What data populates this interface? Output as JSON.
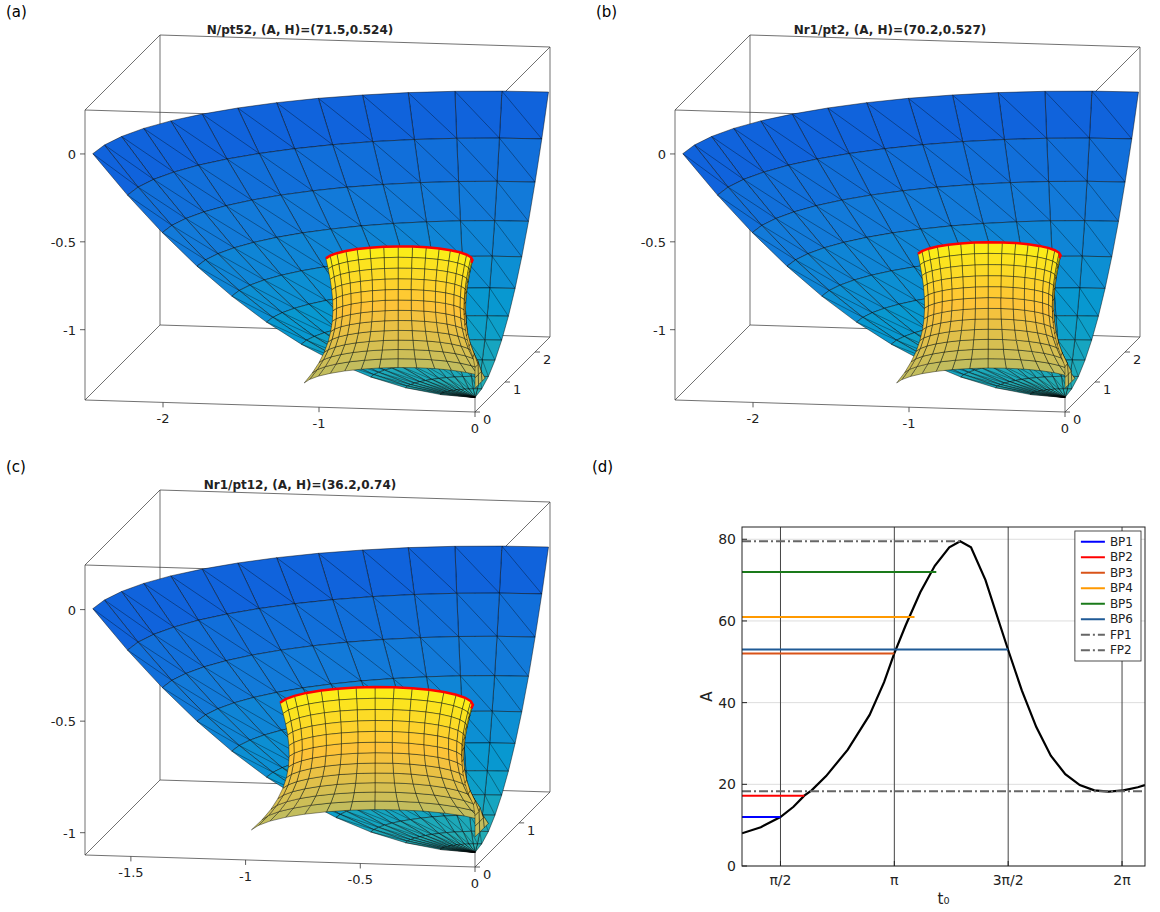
{
  "panels": [
    {
      "letter": "(a)",
      "title": "N/pt52, (A, H)=(71.5,0.524)",
      "xlim": [
        -2.5,
        0
      ],
      "ylim": [
        0,
        2.5
      ],
      "zlim": [
        -1.4,
        0.25
      ],
      "xticks": [
        -2,
        -1,
        0
      ],
      "yticks": [
        0,
        1,
        2
      ],
      "zticks": [
        -1,
        -0.5,
        0
      ]
    },
    {
      "letter": "(b)",
      "title": "Nr1/pt2, (A, H)=(70.2,0.527)",
      "xlim": [
        -2.5,
        0
      ],
      "ylim": [
        0,
        2.5
      ],
      "zlim": [
        -1.4,
        0.25
      ],
      "xticks": [
        -2,
        -1,
        0
      ],
      "yticks": [
        0,
        1,
        2
      ],
      "zticks": [
        -1,
        -0.5,
        0
      ]
    },
    {
      "letter": "(c)",
      "title": "Nr1/pt12, (A, H)=(36.2,0.74)",
      "xlim": [
        -1.7,
        0
      ],
      "ylim": [
        0,
        1.7
      ],
      "zlim": [
        -1.1,
        0.2
      ],
      "xticks": [
        -1.5,
        -1,
        -0.5,
        0
      ],
      "yticks": [
        0,
        1
      ],
      "zticks": [
        -1,
        -0.5,
        0
      ]
    }
  ],
  "chart_data": {
    "letter": "(d)",
    "type": "line",
    "x_label": "t₀",
    "y_label": "A",
    "xlim": [
      1.04,
      6.6
    ],
    "ylim": [
      0,
      83
    ],
    "xticks": [
      {
        "value": 1.5708,
        "label": "π/2"
      },
      {
        "value": 3.1416,
        "label": "π"
      },
      {
        "value": 4.7124,
        "label": "3π/2"
      },
      {
        "value": 6.2832,
        "label": "2π"
      }
    ],
    "yticks": [
      0,
      20,
      40,
      60,
      80
    ],
    "grid": true,
    "legend": "northeast",
    "series": [
      {
        "name": null,
        "color": "#000000",
        "line_style": "solid",
        "x": [
          1.04,
          1.3,
          1.57,
          1.75,
          1.9,
          2.0,
          2.2,
          2.5,
          2.8,
          3.0,
          3.14,
          3.3,
          3.5,
          3.7,
          3.9,
          4.05,
          4.2,
          4.4,
          4.6,
          4.71,
          4.9,
          5.1,
          5.3,
          5.5,
          5.7,
          5.9,
          6.1,
          6.3,
          6.5,
          6.6
        ],
        "values": [
          8,
          9.5,
          12,
          14.5,
          17.2,
          18.5,
          22,
          28.5,
          37,
          45,
          52,
          59,
          67,
          73.5,
          78,
          79.5,
          78,
          70,
          59,
          53,
          43,
          34,
          27,
          22.5,
          19.8,
          18.5,
          18.2,
          18.5,
          19.3,
          19.8
        ]
      },
      {
        "name": "BP1",
        "color": "#0000ff",
        "line_style": "solid",
        "x": [
          1.04,
          1.57
        ],
        "values": [
          12,
          12
        ]
      },
      {
        "name": "BP2",
        "color": "#ff0000",
        "line_style": "solid",
        "x": [
          1.04,
          1.9
        ],
        "values": [
          17.2,
          17.2
        ]
      },
      {
        "name": "BP3",
        "color": "#d95319",
        "line_style": "solid",
        "x": [
          1.04,
          3.14
        ],
        "values": [
          52,
          52
        ]
      },
      {
        "name": "BP4",
        "color": "#ff9900",
        "line_style": "solid",
        "x": [
          1.04,
          3.42
        ],
        "values": [
          61,
          61
        ]
      },
      {
        "name": "BP5",
        "color": "#1a7a1a",
        "line_style": "solid",
        "x": [
          1.04,
          3.72
        ],
        "values": [
          72,
          72
        ]
      },
      {
        "name": "BP6",
        "color": "#1f5a96",
        "line_style": "solid",
        "x": [
          1.04,
          4.71
        ],
        "values": [
          53,
          53
        ]
      },
      {
        "name": "FP1",
        "color": "#666666",
        "line_style": "dashdot",
        "x": [
          1.04,
          4.05
        ],
        "values": [
          79.5,
          79.5
        ]
      },
      {
        "name": "FP2",
        "color": "#666666",
        "line_style": "dashdot",
        "x": [
          1.04,
          6.6
        ],
        "values": [
          18.3,
          18.3
        ]
      }
    ]
  }
}
